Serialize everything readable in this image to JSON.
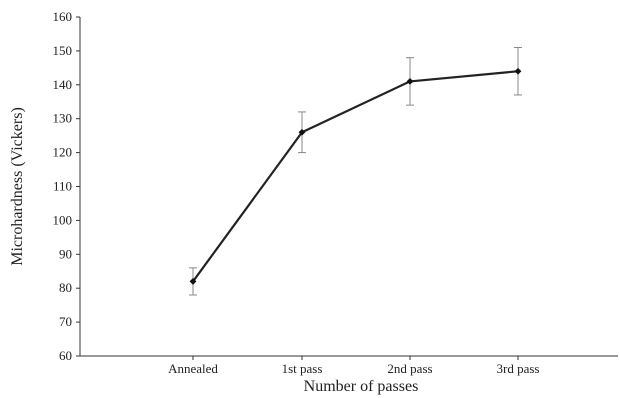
{
  "chart_data": {
    "type": "line",
    "title": "",
    "xlabel": "Number of passes",
    "ylabel": "Microhardness (Vickers)",
    "categories": [
      "Annealed",
      "1st pass",
      "2nd pass",
      "3rd pass"
    ],
    "series": [
      {
        "values": [
          82,
          126,
          141,
          144
        ],
        "error_low": [
          78,
          120,
          134,
          137
        ],
        "error_high": [
          86,
          132,
          148,
          151
        ]
      }
    ],
    "ylim": [
      60,
      160
    ],
    "yticks": [
      60,
      70,
      80,
      90,
      100,
      110,
      120,
      130,
      140,
      150,
      160
    ],
    "grid": false,
    "legend": "none",
    "colors": {
      "line": "#222222",
      "marker": "#111111",
      "error_bar": "#888888",
      "axis": "#333333"
    }
  }
}
